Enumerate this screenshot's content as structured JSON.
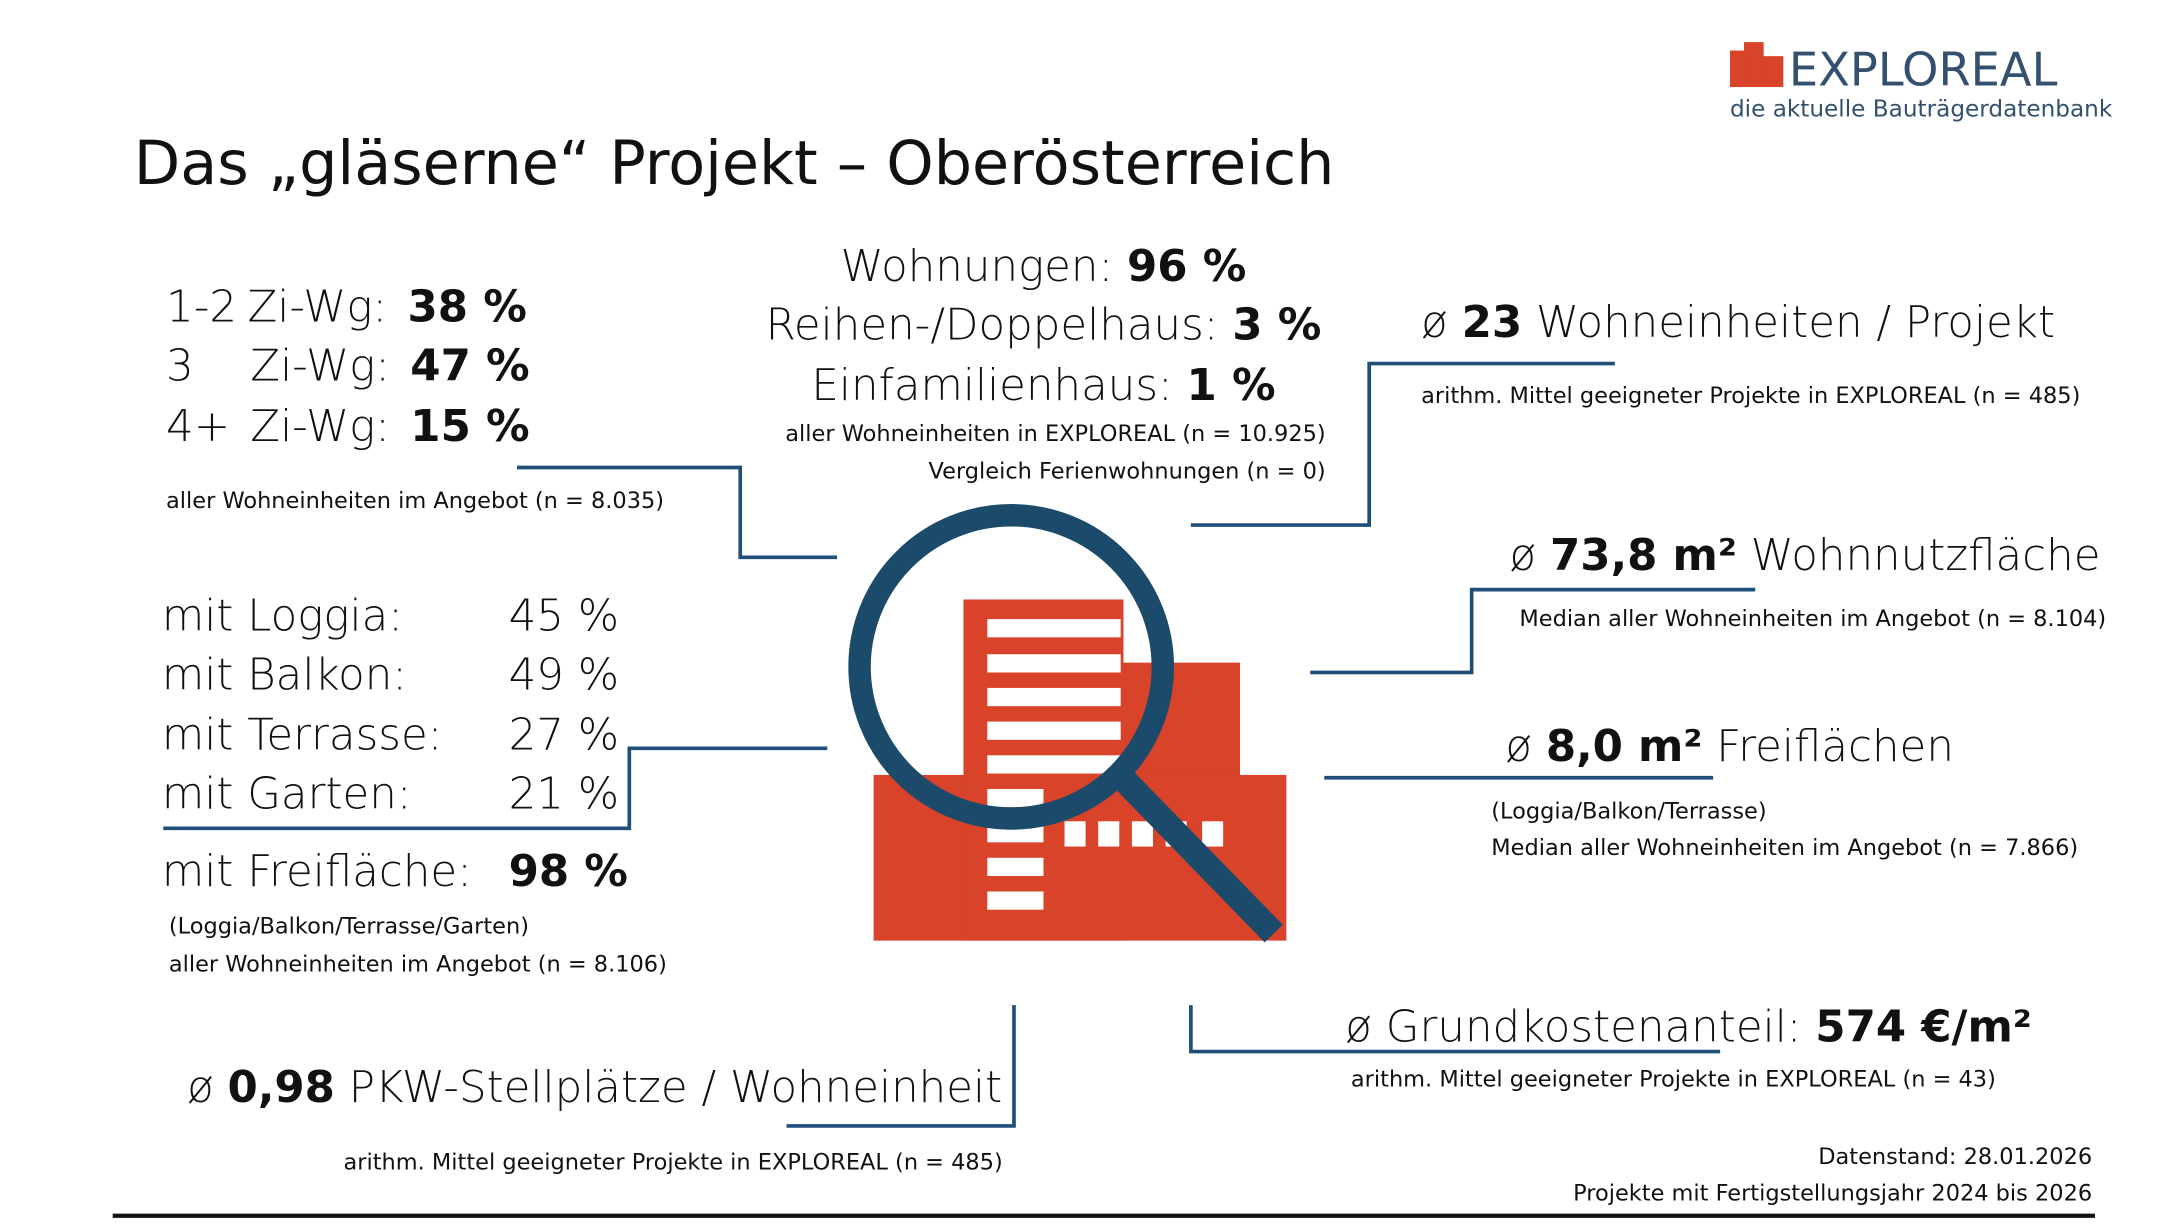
{
  "logo": {
    "name": "EXPLOREAL",
    "tagline": "die aktuelle Bauträgerdatenbank"
  },
  "title": "Das „gläserne“ Projekt – Oberösterreich",
  "rooms": {
    "rows": [
      {
        "count": "1-2",
        "label": "Zi-Wg:",
        "value": "38 %"
      },
      {
        "count": "3",
        "label": "Zi-Wg:",
        "value": "47 %"
      },
      {
        "count": "4+",
        "label": "Zi-Wg:",
        "value": "15 %"
      }
    ],
    "note": "aller Wohneinheiten im Angebot (n = 8.035)"
  },
  "types": {
    "rows": [
      {
        "label": "Wohnungen:",
        "value": "96 %"
      },
      {
        "label": "Reihen-/Doppelhaus:",
        "value": "3 %"
      },
      {
        "label": "Einfamilienhaus:",
        "value": "1 %"
      }
    ],
    "notes": [
      "aller Wohneinheiten in EXPLOREAL (n = 10.925)",
      "Vergleich Ferienwohnungen (n = 0)"
    ]
  },
  "units": {
    "prefix": "ø",
    "value": "23",
    "label": "Wohneinheiten / Projekt",
    "note": "arithm. Mittel geeigneter Projekte in EXPLOREAL (n = 485)"
  },
  "area": {
    "prefix": "ø",
    "value": "73,8 m²",
    "label": "Wohnnutzfläche",
    "note": "Median aller Wohneinheiten im Angebot (n = 8.104)"
  },
  "outdoor_area": {
    "prefix": "ø",
    "value": "8,0 m²",
    "label": "Freiflächen",
    "notes": [
      "(Loggia/Balkon/Terrasse)",
      "Median aller Wohneinheiten im Angebot (n = 7.866)"
    ]
  },
  "land_cost": {
    "prefix": "ø",
    "label": "Grundkostenanteil:",
    "value": "574 €/m²",
    "note": "arithm. Mittel geeigneter Projekte in EXPLOREAL (n = 43)"
  },
  "parking": {
    "prefix": "ø",
    "value": "0,98",
    "label": "PKW-Stellplätze / Wohneinheit",
    "note": "arithm. Mittel geeigneter Projekte in EXPLOREAL (n = 485)"
  },
  "features": {
    "rows": [
      {
        "label": "mit Loggia:",
        "value": "45 %"
      },
      {
        "label": "mit Balkon:",
        "value": "49 %"
      },
      {
        "label": "mit Terrasse:",
        "value": "27 %"
      },
      {
        "label": "mit Garten:",
        "value": "21 %"
      }
    ],
    "total": {
      "label": "mit Freifläche:",
      "value": "98 %"
    },
    "notes": [
      "(Loggia/Balkon/Terrasse/Garten)",
      "aller Wohneinheiten im Angebot (n = 8.106)"
    ]
  },
  "footer": [
    "Datenstand: 28.01.2026",
    "Projekte mit Fertigstellungsjahr 2024 bis 2026"
  ]
}
